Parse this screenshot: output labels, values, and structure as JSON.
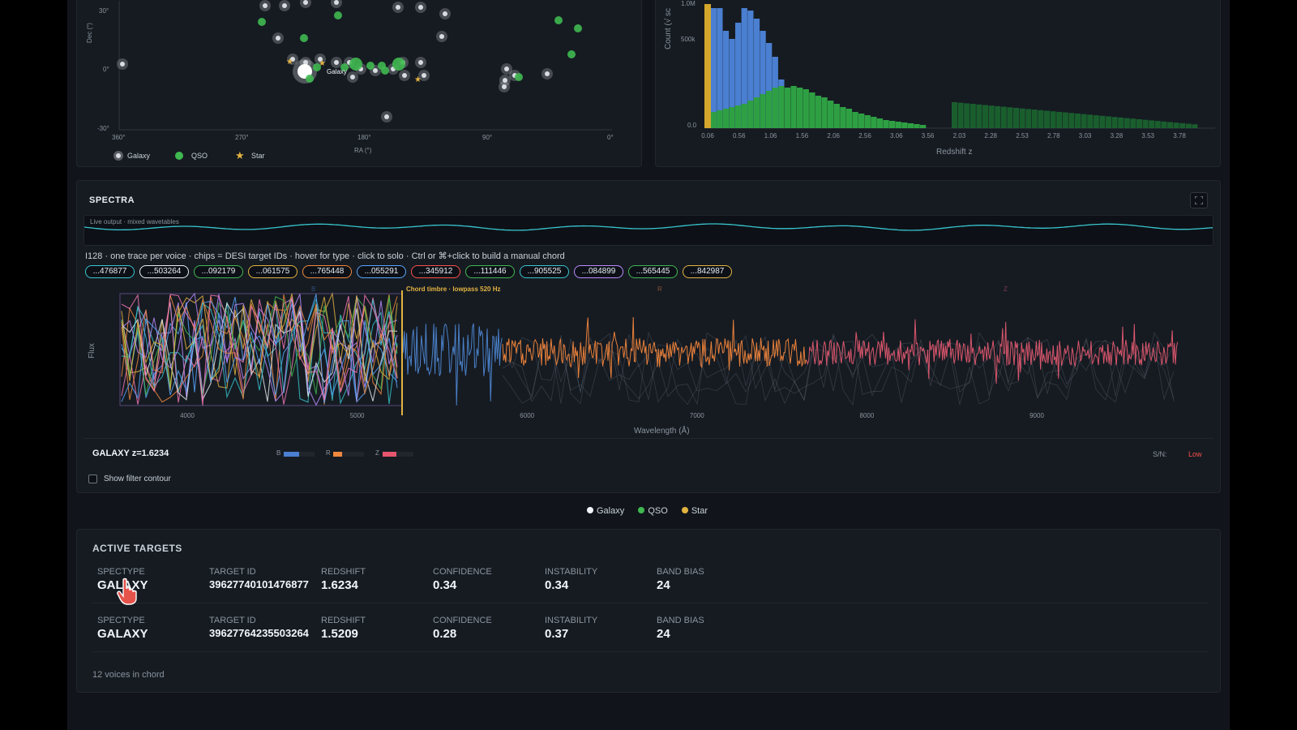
{
  "sky_map": {
    "y_axis_label": "Dec (°)",
    "x_axis_label": "RA (°)",
    "y_ticks": [
      "30°",
      "0°",
      "-30°"
    ],
    "x_ticks": [
      "360°",
      "270°",
      "180°",
      "90°",
      "0°"
    ],
    "legend": [
      {
        "label": "Galaxy",
        "icon": "galaxy-icon"
      },
      {
        "label": "QSO",
        "icon": "qso-dot-icon"
      },
      {
        "label": "Star",
        "icon": "star-icon"
      }
    ],
    "highlight_label": "Galaxy",
    "colors": {
      "galaxy": "#d8dce2",
      "qso": "#3fb950",
      "star": "#e3b341"
    }
  },
  "histogram": {
    "y_axis_label": "Count (√ sc",
    "x_axis_label": "Redshift z",
    "y_ticks": [
      "1.0M",
      "500k",
      "0.0"
    ],
    "x_ticks": [
      "0.06",
      "0.56",
      "1.06",
      "1.56",
      "2.06",
      "2.56",
      "3.06",
      "3.56",
      "2.03",
      "2.28",
      "2.53",
      "2.78",
      "3.03",
      "3.28",
      "3.53",
      "3.78"
    ],
    "colors": {
      "galaxy": "#4a7fd1",
      "qso": "#2ea043",
      "qso_dark": "#1a5e2e",
      "star": "#d4a72c"
    }
  },
  "spectra": {
    "title": "SPECTRA",
    "live_output_label": "Live output · mixed wavetables",
    "instructions": "I128 · one trace per voice · chips = DESI target IDs · hover for type · click to solo · Ctrl or ⌘+click to build a manual chord",
    "chips": [
      {
        "label": "...476877",
        "color": "#39c5cf"
      },
      {
        "label": "...503264",
        "color": "#e6edf3"
      },
      {
        "label": "...092179",
        "color": "#3fb950"
      },
      {
        "label": "...061575",
        "color": "#e3b341"
      },
      {
        "label": "...765448",
        "color": "#f0883e"
      },
      {
        "label": "...055291",
        "color": "#58a6ff"
      },
      {
        "label": "...345912",
        "color": "#f85149"
      },
      {
        "label": "...111446",
        "color": "#3fb950"
      },
      {
        "label": "...905525",
        "color": "#39c5cf"
      },
      {
        "label": "...084899",
        "color": "#bc8cff"
      },
      {
        "label": "...565445",
        "color": "#3fb950"
      },
      {
        "label": "...842987",
        "color": "#e3b341"
      }
    ],
    "chord_label": "Chord timbre · lowpass 520 Hz",
    "y_axis_label": "Flux",
    "x_axis_label": "Wavelength (Å)",
    "x_ticks": [
      "4000",
      "5000",
      "6000",
      "7000",
      "8000",
      "9000"
    ],
    "band_markers": [
      "B",
      "R",
      "Z"
    ],
    "object_label": "GALAXY z=1.6234",
    "bands": [
      {
        "name": "B",
        "color": "#4a7fd1",
        "level": 0.5
      },
      {
        "name": "R",
        "color": "#f0883e",
        "level": 0.3
      },
      {
        "name": "Z",
        "color": "#e5566e",
        "level": 0.45
      }
    ],
    "sn_label": "S/N:",
    "sn_value": "Low",
    "filter_contour_label": "Show filter contour",
    "filter_contour_checked": false,
    "colors": {
      "b_band": "#4a80c8",
      "r_band": "#e8803a",
      "z_band": "#d9566c",
      "cursor": "#e3b341"
    }
  },
  "type_legend": [
    {
      "label": "Galaxy",
      "color": "#f0f6fc"
    },
    {
      "label": "QSO",
      "color": "#3fb950"
    },
    {
      "label": "Star",
      "color": "#e3b341"
    }
  ],
  "active_targets": {
    "title": "ACTIVE TARGETS",
    "headers": [
      "SPECTYPE",
      "TARGET ID",
      "REDSHIFT",
      "CONFIDENCE",
      "INSTABILITY",
      "BAND BIAS"
    ],
    "rows": [
      {
        "spectype": "GALAXY",
        "target_id": "39627740101476877",
        "redshift": "1.6234",
        "confidence": "0.34",
        "instability": "0.34",
        "band_bias": "24"
      },
      {
        "spectype": "GALAXY",
        "target_id": "39627764235503264",
        "redshift": "1.5209",
        "confidence": "0.28",
        "instability": "0.37",
        "band_bias": "24"
      }
    ],
    "footer": "12 voices in chord"
  }
}
